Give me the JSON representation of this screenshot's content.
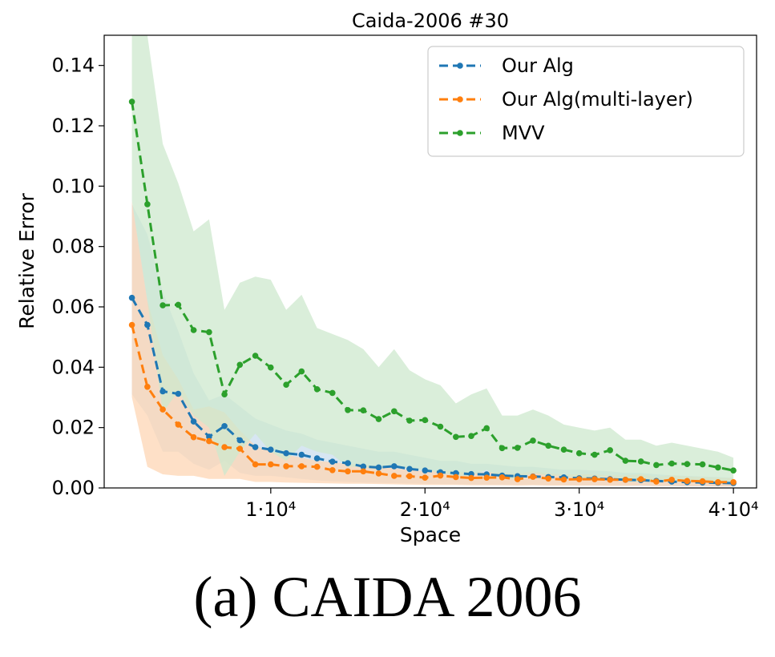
{
  "caption": "(a) CAIDA 2006",
  "chart_data": {
    "type": "line",
    "title": "Caida-2006 #30",
    "xlabel": "Space",
    "ylabel": "Relative Error",
    "xlim": [
      -800,
      41500
    ],
    "ylim": [
      0,
      0.15
    ],
    "grid": false,
    "legend_position": "top-right",
    "xticks": [
      {
        "value": 10000,
        "label": "1·10⁴"
      },
      {
        "value": 20000,
        "label": "2·10⁴"
      },
      {
        "value": 30000,
        "label": "3·10⁴"
      },
      {
        "value": 40000,
        "label": "4·10⁴"
      }
    ],
    "yticks": [
      {
        "value": 0.0,
        "label": "0.00"
      },
      {
        "value": 0.02,
        "label": "0.02"
      },
      {
        "value": 0.04,
        "label": "0.04"
      },
      {
        "value": 0.06,
        "label": "0.06"
      },
      {
        "value": 0.08,
        "label": "0.08"
      },
      {
        "value": 0.1,
        "label": "0.10"
      },
      {
        "value": 0.12,
        "label": "0.12"
      },
      {
        "value": 0.14,
        "label": "0.14"
      }
    ],
    "x": [
      1000,
      2000,
      3000,
      4000,
      5000,
      6000,
      7000,
      8000,
      9000,
      10000,
      11000,
      12000,
      13000,
      14000,
      15000,
      16000,
      17000,
      18000,
      19000,
      20000,
      21000,
      22000,
      23000,
      24000,
      25000,
      26000,
      27000,
      28000,
      29000,
      30000,
      31000,
      32000,
      33000,
      34000,
      35000,
      36000,
      37000,
      38000,
      39000,
      40000
    ],
    "series": [
      {
        "name": "Our Alg",
        "color": "#1f77b4",
        "band_color": "#c9ddee",
        "values": [
          0.063,
          0.054,
          0.032,
          0.0312,
          0.022,
          0.017,
          0.0205,
          0.0158,
          0.0135,
          0.0127,
          0.0115,
          0.011,
          0.0098,
          0.0087,
          0.0082,
          0.0071,
          0.0068,
          0.0072,
          0.0063,
          0.0058,
          0.0052,
          0.0049,
          0.0046,
          0.0045,
          0.0041,
          0.0039,
          0.0038,
          0.0036,
          0.0035,
          0.0032,
          0.0031,
          0.0029,
          0.0027,
          0.0026,
          0.0023,
          0.0021,
          0.0019,
          0.0018,
          0.0017,
          0.0016
        ],
        "upper": [
          0.094,
          0.084,
          0.065,
          0.052,
          0.038,
          0.029,
          0.031,
          0.027,
          0.023,
          0.021,
          0.019,
          0.018,
          0.016,
          0.015,
          0.014,
          0.013,
          0.012,
          0.012,
          0.011,
          0.01,
          0.009,
          0.009,
          0.008,
          0.008,
          0.0075,
          0.007,
          0.007,
          0.0065,
          0.006,
          0.006,
          0.0058,
          0.0055,
          0.005,
          0.005,
          0.0045,
          0.0042,
          0.004,
          0.0038,
          0.0036,
          0.0034
        ],
        "lower": [
          0.031,
          0.024,
          0.012,
          0.012,
          0.008,
          0.006,
          0.009,
          0.005,
          0.004,
          0.004,
          0.0035,
          0.003,
          0.0025,
          0.0022,
          0.002,
          0.0018,
          0.0017,
          0.0016,
          0.0015,
          0.0014,
          0.0013,
          0.0012,
          0.0011,
          0.0011,
          0.001,
          0.001,
          0.001,
          0.0009,
          0.0009,
          0.0008,
          0.0008,
          0.0008,
          0.0007,
          0.0007,
          0.0006,
          0.0006,
          0.0005,
          0.0005,
          0.0005,
          0.0005
        ]
      },
      {
        "name": "Our Alg(multi-layer)",
        "color": "#ff7f0e",
        "band_color": "#fed6b4",
        "values": [
          0.054,
          0.0335,
          0.026,
          0.021,
          0.0168,
          0.0155,
          0.0135,
          0.013,
          0.0078,
          0.0078,
          0.0072,
          0.0072,
          0.007,
          0.0059,
          0.0055,
          0.0055,
          0.0048,
          0.004,
          0.0039,
          0.0034,
          0.0041,
          0.0036,
          0.0033,
          0.0034,
          0.0035,
          0.0029,
          0.0037,
          0.0031,
          0.0028,
          0.0029,
          0.0029,
          0.0027,
          0.0027,
          0.0029,
          0.0021,
          0.0027,
          0.0023,
          0.0022,
          0.0019,
          0.0019
        ],
        "upper": [
          0.095,
          0.062,
          0.044,
          0.036,
          0.026,
          0.027,
          0.025,
          0.019,
          0.014,
          0.012,
          0.011,
          0.01,
          0.009,
          0.0085,
          0.008,
          0.0078,
          0.007,
          0.0065,
          0.006,
          0.0055,
          0.006,
          0.0055,
          0.005,
          0.0052,
          0.0052,
          0.0047,
          0.0055,
          0.0048,
          0.0045,
          0.0045,
          0.0045,
          0.0042,
          0.0042,
          0.0045,
          0.0036,
          0.0042,
          0.0038,
          0.0036,
          0.0033,
          0.0033
        ],
        "lower": [
          0.03,
          0.007,
          0.0045,
          0.004,
          0.004,
          0.003,
          0.003,
          0.003,
          0.002,
          0.002,
          0.0018,
          0.0017,
          0.0016,
          0.0015,
          0.0014,
          0.0014,
          0.0013,
          0.0012,
          0.0011,
          0.001,
          0.001,
          0.001,
          0.0009,
          0.0009,
          0.0009,
          0.0008,
          0.0009,
          0.0008,
          0.0008,
          0.0008,
          0.0008,
          0.0007,
          0.0007,
          0.0008,
          0.0006,
          0.0007,
          0.0006,
          0.0006,
          0.0005,
          0.0005
        ]
      },
      {
        "name": "MVV",
        "color": "#2ca02c",
        "band_color": "#cde8cd",
        "values": [
          0.128,
          0.094,
          0.0605,
          0.0607,
          0.0523,
          0.0516,
          0.031,
          0.0408,
          0.0438,
          0.0399,
          0.0342,
          0.0386,
          0.0327,
          0.0315,
          0.0258,
          0.0257,
          0.0228,
          0.0254,
          0.0223,
          0.0225,
          0.0203,
          0.0169,
          0.0172,
          0.0198,
          0.0132,
          0.0133,
          0.0157,
          0.014,
          0.0127,
          0.0115,
          0.011,
          0.0125,
          0.009,
          0.0088,
          0.0076,
          0.0081,
          0.0079,
          0.0078,
          0.0068,
          0.0058
        ],
        "upper": [
          0.15,
          0.15,
          0.114,
          0.101,
          0.085,
          0.089,
          0.059,
          0.068,
          0.07,
          0.069,
          0.059,
          0.064,
          0.053,
          0.051,
          0.049,
          0.046,
          0.04,
          0.046,
          0.039,
          0.036,
          0.034,
          0.028,
          0.031,
          0.033,
          0.024,
          0.024,
          0.026,
          0.024,
          0.021,
          0.02,
          0.019,
          0.02,
          0.016,
          0.016,
          0.014,
          0.015,
          0.014,
          0.013,
          0.012,
          0.01
        ],
        "lower": [
          0.095,
          0.062,
          0.025,
          0.032,
          0.024,
          0.02,
          0.004,
          0.012,
          0.018,
          0.012,
          0.009,
          0.014,
          0.012,
          0.011,
          0.007,
          0.007,
          0.006,
          0.008,
          0.006,
          0.006,
          0.005,
          0.004,
          0.004,
          0.006,
          0.003,
          0.003,
          0.005,
          0.004,
          0.004,
          0.003,
          0.003,
          0.004,
          0.002,
          0.002,
          0.002,
          0.002,
          0.002,
          0.002,
          0.0018,
          0.0015
        ]
      }
    ]
  }
}
